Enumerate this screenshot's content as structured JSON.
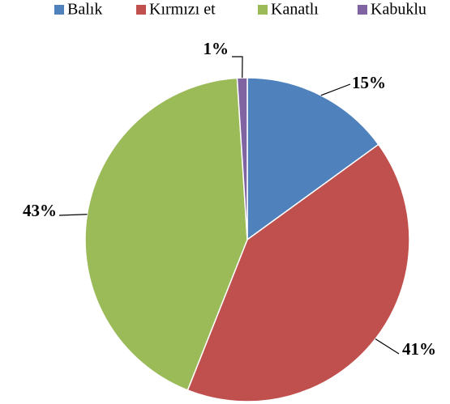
{
  "chart_data": {
    "type": "pie",
    "categories": [
      "Balık",
      "Kırmızı et",
      "Kanatlı",
      "Kabuklu"
    ],
    "values": [
      15,
      41,
      43,
      1
    ],
    "value_labels": [
      "15%",
      "41%",
      "43%",
      "1%"
    ],
    "colors": [
      "#4f81bd",
      "#c0504d",
      "#9bbb59",
      "#8064a2"
    ],
    "legend": "top"
  }
}
